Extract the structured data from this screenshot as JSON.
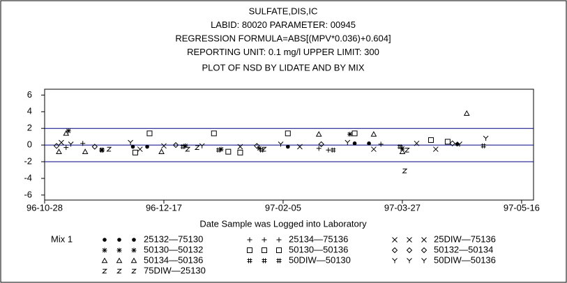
{
  "chart_data": {
    "type": "scatter",
    "title_lines": [
      "SULFATE,DIS,IC",
      "LABID: 80020 PARAMETER: 00945",
      "REGRESSION FORMULA=ABS[(MPV*0.036)+0.604]",
      "REPORTING UNIT: 0.1 mg/l   UPPER LIMIT: 300"
    ],
    "subtitle": "PLOT OF NSD BY LIDATE AND BY MIX",
    "x_label": "Date Sample was Logged into Laboratory",
    "legend_title": "Mix 1",
    "xlim": [
      "96-10-28",
      "97-05-21"
    ],
    "xticks": [
      "96-10-28",
      "96-12-17",
      "97-02-05",
      "97-03-27",
      "97-05-16"
    ],
    "ylim": [
      -6.6,
      6.7
    ],
    "yticks": [
      6,
      4,
      2,
      0,
      -2,
      -4,
      -6
    ],
    "hlines": [
      2,
      0,
      -2
    ],
    "series": [
      {
        "name": "25132—75130",
        "color": "#000000",
        "marker": "dot",
        "x": [
          "96-12-04",
          "96-12-10",
          "97-02-07",
          "97-03-07",
          "97-03-13",
          "97-04-19"
        ],
        "values": [
          -0.2,
          -0.2,
          -0.2,
          0.2,
          0.2,
          0.1
        ]
      },
      {
        "name": "25134—75136",
        "color": "#000000",
        "marker": "plus",
        "x": [
          "96-11-06",
          "96-11-13",
          "97-02-20",
          "97-02-24",
          "97-03-18"
        ],
        "values": [
          -0.3,
          0.2,
          -0.4,
          -0.6,
          0.1
        ]
      },
      {
        "name": "25DIW—75136",
        "color": "#000000",
        "marker": "cross",
        "x": [
          "96-11-04",
          "96-12-07",
          "96-12-17",
          "97-01-18",
          "97-02-12",
          "97-03-15",
          "97-04-02",
          "97-04-10"
        ],
        "values": [
          0.3,
          -0.5,
          -0.1,
          -0.2,
          -0.2,
          -0.5,
          0.2,
          -0.5
        ]
      },
      {
        "name": "50130—50132",
        "color": "#000000",
        "marker": "star",
        "x": [
          "96-11-07",
          "96-11-21",
          "96-12-26",
          "97-01-10",
          "97-01-26",
          "97-03-05",
          "97-03-27"
        ],
        "values": [
          1.7,
          -0.6,
          -0.1,
          -0.5,
          -0.4,
          1.3,
          -0.4
        ]
      },
      {
        "name": "50130—50136",
        "color": "#000000",
        "marker": "square",
        "x": [
          "96-12-05",
          "96-12-11",
          "97-01-07",
          "97-01-13",
          "97-01-18",
          "97-02-07",
          "97-03-07",
          "97-04-08",
          "97-04-15"
        ],
        "values": [
          -0.9,
          1.4,
          1.4,
          -0.8,
          -0.9,
          1.4,
          1.4,
          0.6,
          0.4
        ]
      },
      {
        "name": "50132—50134",
        "color": "#000000",
        "marker": "diamond",
        "x": [
          "96-11-02",
          "96-11-18",
          "96-12-22",
          "97-01-25",
          "97-02-21",
          "97-04-17"
        ],
        "values": [
          -0.1,
          -0.2,
          0,
          -0.1,
          0.1,
          0.2
        ]
      },
      {
        "name": "50134—50136",
        "color": "#000000",
        "marker": "triangle",
        "x": [
          "96-11-03",
          "96-11-06",
          "96-11-14",
          "96-12-16",
          "97-02-20",
          "97-03-15",
          "97-03-27",
          "97-04-23"
        ],
        "values": [
          -0.8,
          1.4,
          -0.8,
          -0.8,
          1.3,
          1.3,
          -0.8,
          3.8
        ]
      },
      {
        "name": "50DIW—50130",
        "color": "#000000",
        "marker": "hash",
        "x": [
          "96-11-21",
          "96-12-25",
          "97-01-09",
          "97-01-27",
          "97-02-26",
          "97-03-26",
          "97-04-30"
        ],
        "values": [
          -0.6,
          -0.2,
          -0.6,
          -0.6,
          -0.6,
          -0.2,
          -0.1
        ]
      },
      {
        "name": "50DIW—50136",
        "color": "#000000",
        "marker": "y",
        "x": [
          "96-11-08",
          "96-12-03",
          "97-01-02",
          "97-02-04",
          "97-03-04",
          "97-04-20",
          "97-05-01"
        ],
        "values": [
          0.1,
          0.3,
          -0.1,
          0.1,
          0.3,
          0.1,
          0.8
        ]
      },
      {
        "name": "75DIW—25130",
        "color": "#000000",
        "marker": "z",
        "x": [
          "96-11-24",
          "96-12-27",
          "96-12-31",
          "97-01-28",
          "97-03-28",
          "97-03-29"
        ],
        "values": [
          -0.5,
          -0.5,
          -0.3,
          -0.5,
          -3.1,
          -0.6
        ]
      }
    ]
  }
}
